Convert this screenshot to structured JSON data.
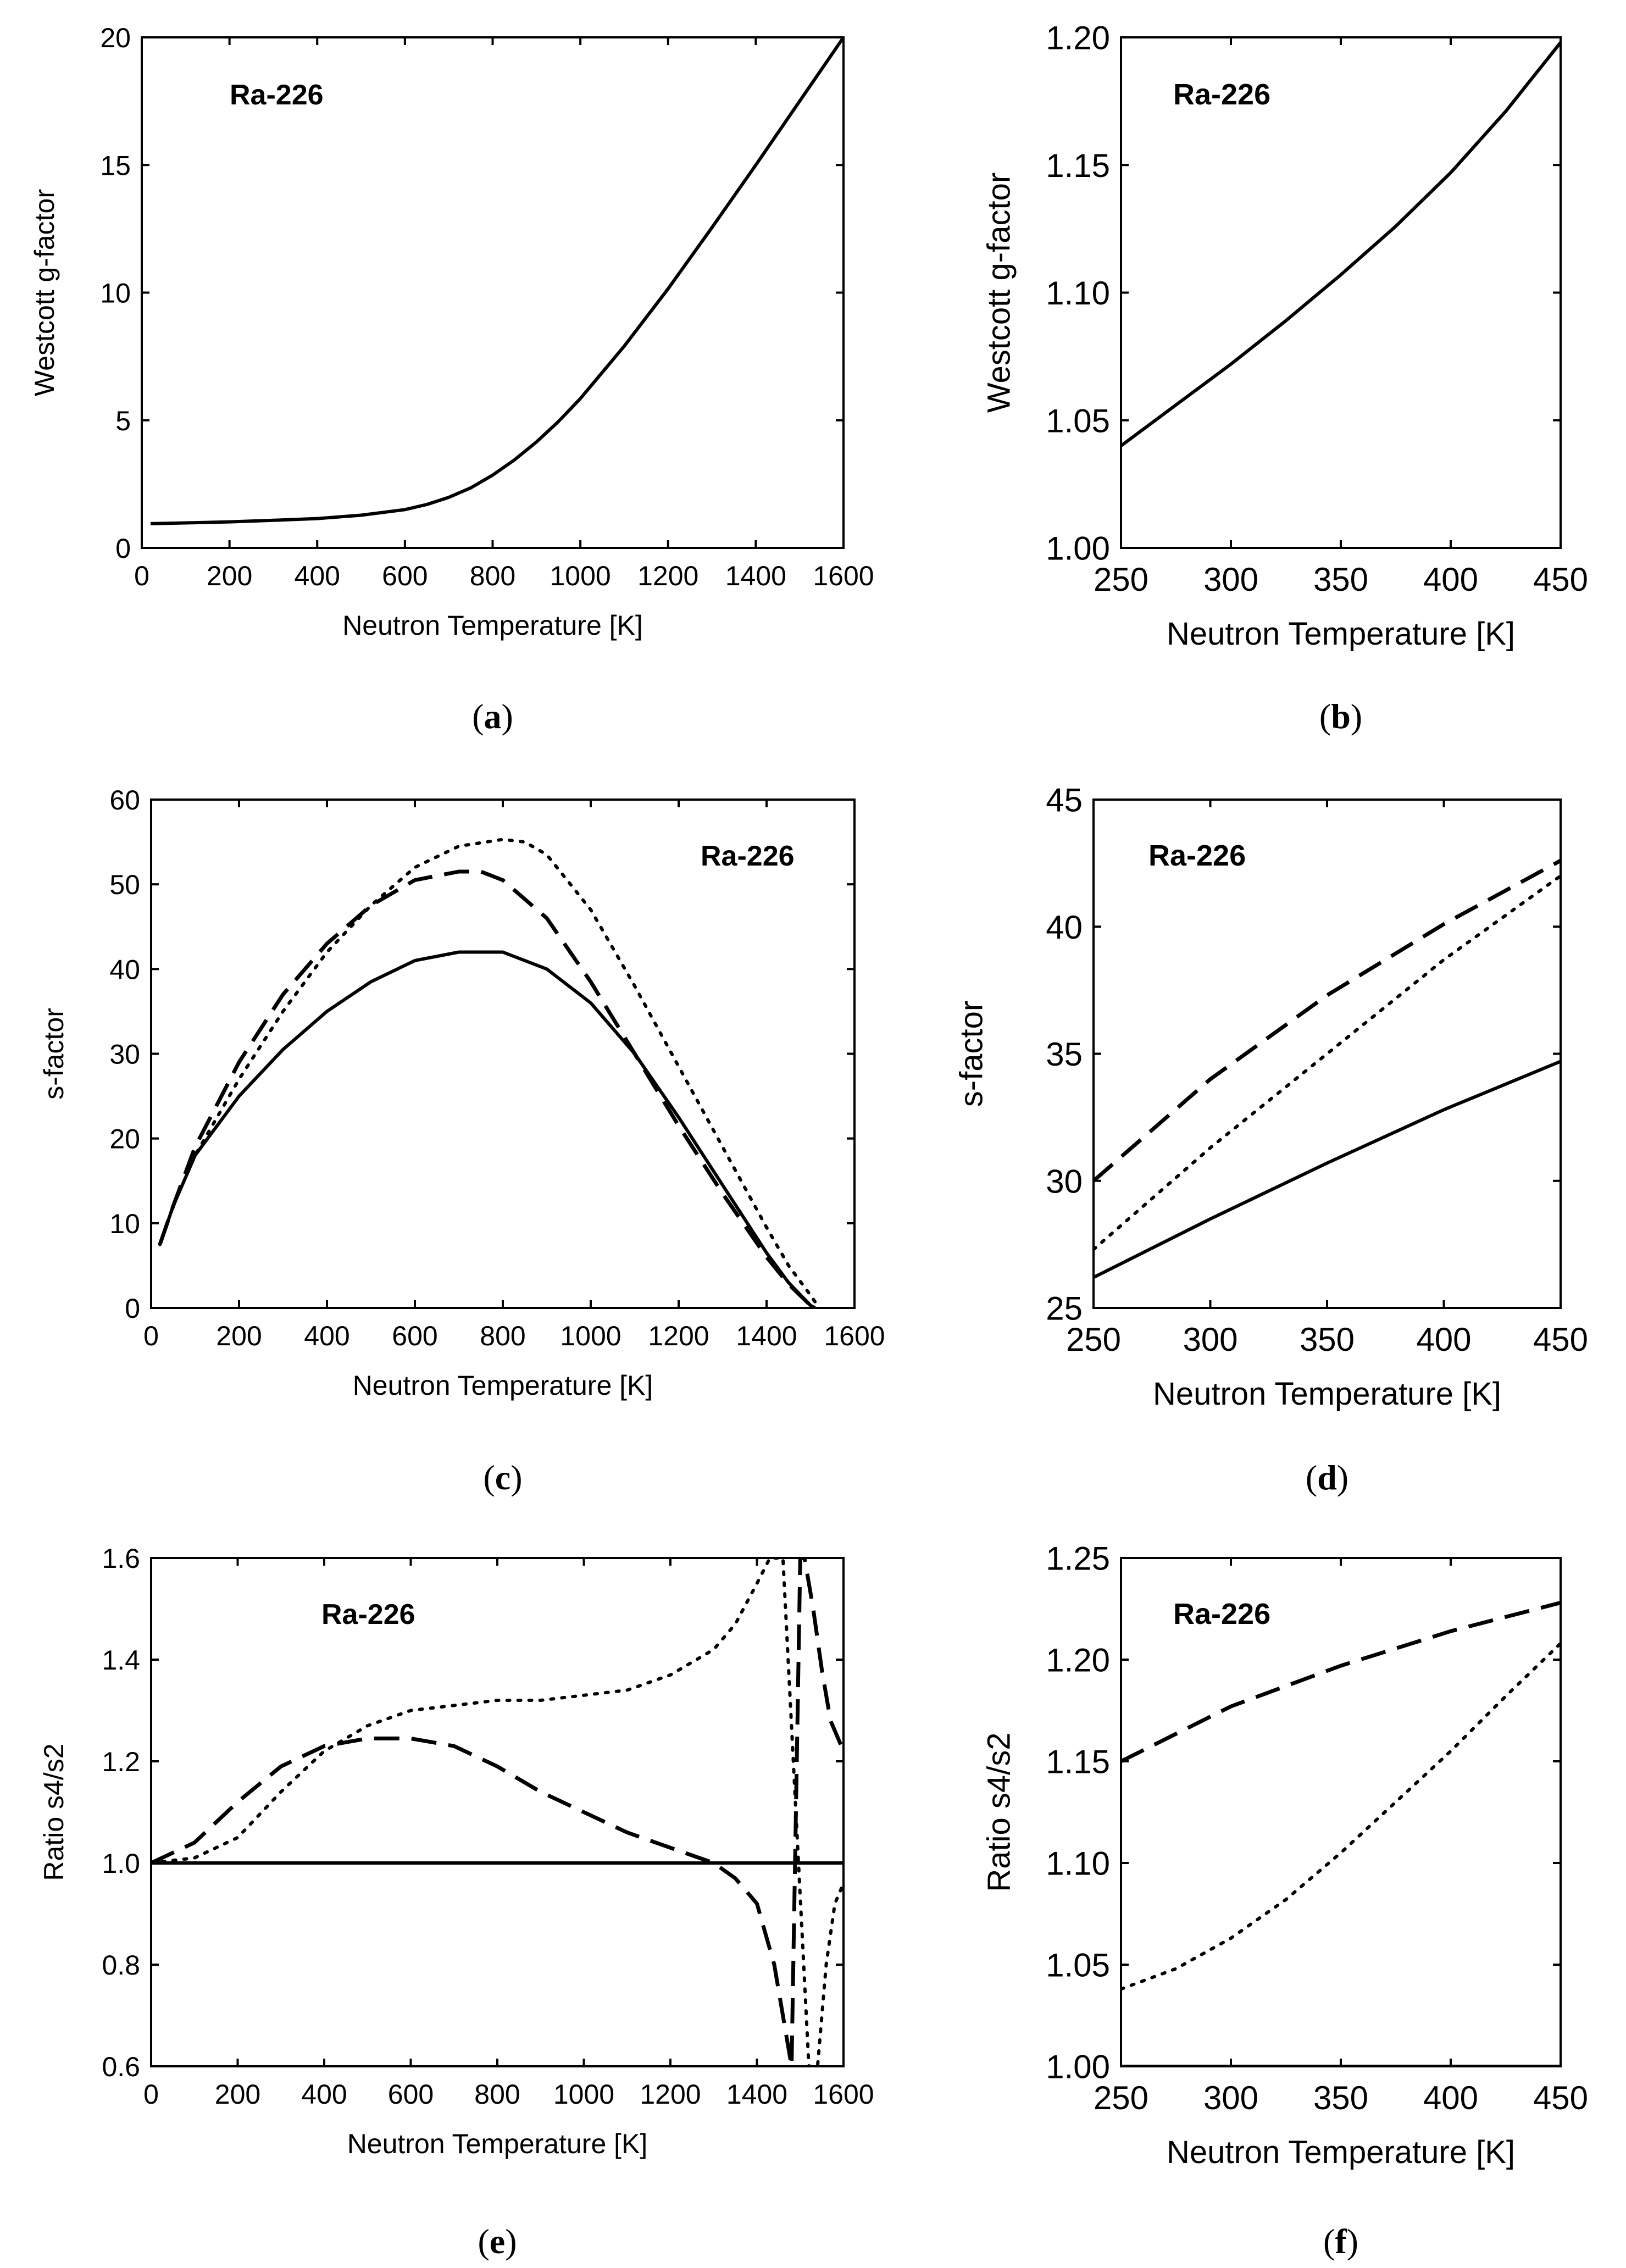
{
  "figure": {
    "panels": [
      "a",
      "b",
      "c",
      "d",
      "e",
      "f"
    ]
  },
  "chart_data": [
    {
      "id": "a",
      "type": "line",
      "caption": "a",
      "inset_label": "Ra-226",
      "xlabel": "Neutron Temperature [K]",
      "ylabel": "Westcott g-factor",
      "xlim": [
        0,
        1600
      ],
      "ylim": [
        0,
        20
      ],
      "xticks": [
        0,
        200,
        400,
        600,
        800,
        1000,
        1200,
        1400,
        1600
      ],
      "yticks": [
        0,
        5,
        10,
        15,
        20
      ],
      "xtick_labels": [
        "0",
        "200",
        "400",
        "600",
        "800",
        "1000",
        "1200",
        "1400",
        "1600"
      ],
      "ytick_labels": [
        "0",
        "5",
        "10",
        "15",
        "20"
      ],
      "series": [
        {
          "name": "g-factor",
          "style": "solid",
          "x": [
            20,
            100,
            200,
            300,
            400,
            500,
            600,
            650,
            700,
            750,
            800,
            850,
            900,
            950,
            1000,
            1100,
            1200,
            1300,
            1400,
            1500,
            1600
          ],
          "y": [
            0.95,
            0.98,
            1.02,
            1.08,
            1.15,
            1.28,
            1.5,
            1.7,
            1.98,
            2.35,
            2.85,
            3.45,
            4.15,
            4.95,
            5.85,
            7.9,
            10.15,
            12.55,
            15.0,
            17.5,
            20.0
          ]
        }
      ]
    },
    {
      "id": "b",
      "type": "line",
      "caption": "b",
      "inset_label": "Ra-226",
      "xlabel": "Neutron Temperature [K]",
      "ylabel": "Westcott g-factor",
      "xlim": [
        250,
        450
      ],
      "ylim": [
        1.0,
        1.2
      ],
      "xticks": [
        250,
        300,
        350,
        400,
        450
      ],
      "yticks": [
        1.0,
        1.05,
        1.1,
        1.15,
        1.2
      ],
      "xtick_labels": [
        "250",
        "300",
        "350",
        "400",
        "450"
      ],
      "ytick_labels": [
        "1.00",
        "1.05",
        "1.10",
        "1.15",
        "1.20"
      ],
      "series": [
        {
          "name": "g-factor",
          "style": "solid",
          "x": [
            250,
            275,
            300,
            325,
            350,
            375,
            400,
            425,
            450
          ],
          "y": [
            1.04,
            1.056,
            1.072,
            1.089,
            1.107,
            1.126,
            1.147,
            1.171,
            1.198
          ]
        }
      ]
    },
    {
      "id": "c",
      "type": "line",
      "caption": "c",
      "inset_label": "Ra-226",
      "xlabel": "Neutron Temperature [K]",
      "ylabel": "s-factor",
      "xlim": [
        0,
        1600
      ],
      "ylim": [
        0,
        60
      ],
      "xticks": [
        0,
        200,
        400,
        600,
        800,
        1000,
        1200,
        1400,
        1600
      ],
      "yticks": [
        0,
        10,
        20,
        30,
        40,
        50,
        60
      ],
      "xtick_labels": [
        "0",
        "200",
        "400",
        "600",
        "800",
        "1000",
        "1200",
        "1400",
        "1600"
      ],
      "ytick_labels": [
        "0",
        "10",
        "20",
        "30",
        "40",
        "50",
        "60"
      ],
      "series": [
        {
          "name": "solid",
          "style": "solid",
          "x": [
            20,
            50,
            100,
            200,
            300,
            400,
            500,
            600,
            700,
            800,
            900,
            1000,
            1100,
            1200,
            1300,
            1400,
            1450,
            1500,
            1510
          ],
          "y": [
            7.5,
            12,
            18,
            25,
            30.5,
            35,
            38.5,
            41,
            42,
            42,
            40,
            36,
            30,
            22.5,
            14.5,
            6.5,
            3,
            0.3,
            0
          ]
        },
        {
          "name": "dashed",
          "style": "dashed",
          "x": [
            20,
            50,
            100,
            200,
            300,
            400,
            500,
            600,
            700,
            750,
            800,
            900,
            1000,
            1100,
            1200,
            1300,
            1400,
            1450,
            1500,
            1510
          ],
          "y": [
            7.5,
            12,
            19,
            29,
            37,
            43,
            47.5,
            50.5,
            51.5,
            51.5,
            50.5,
            46,
            38.5,
            30,
            21.5,
            13.5,
            6,
            2.8,
            0.3,
            0
          ]
        },
        {
          "name": "dotted",
          "style": "dotted",
          "x": [
            20,
            50,
            100,
            200,
            300,
            400,
            500,
            600,
            700,
            800,
            850,
            900,
            1000,
            1100,
            1200,
            1300,
            1400,
            1450,
            1500,
            1520
          ],
          "y": [
            7.5,
            12,
            18,
            27,
            35,
            42,
            47.5,
            52,
            54.5,
            55.3,
            55,
            53.5,
            47,
            38,
            28.5,
            19,
            9.5,
            5,
            1.5,
            0
          ]
        }
      ]
    },
    {
      "id": "d",
      "type": "line",
      "caption": "d",
      "inset_label": "Ra-226",
      "xlabel": "Neutron Temperature [K]",
      "ylabel": "s-factor",
      "xlim": [
        250,
        450
      ],
      "ylim": [
        25,
        45
      ],
      "xticks": [
        250,
        300,
        350,
        400,
        450
      ],
      "yticks": [
        25,
        30,
        35,
        40,
        45
      ],
      "xtick_labels": [
        "250",
        "300",
        "350",
        "400",
        "450"
      ],
      "ytick_labels": [
        "25",
        "30",
        "35",
        "40",
        "45"
      ],
      "series": [
        {
          "name": "solid",
          "style": "solid",
          "x": [
            250,
            300,
            350,
            400,
            450
          ],
          "y": [
            26.2,
            28.5,
            30.7,
            32.8,
            34.7
          ]
        },
        {
          "name": "dashed",
          "style": "dashed",
          "x": [
            250,
            300,
            350,
            400,
            450
          ],
          "y": [
            30.0,
            34.0,
            37.3,
            40.1,
            42.6
          ]
        },
        {
          "name": "dotted",
          "style": "dotted",
          "x": [
            250,
            300,
            350,
            400,
            450
          ],
          "y": [
            27.3,
            31.3,
            35.0,
            38.7,
            42.0
          ]
        }
      ]
    },
    {
      "id": "e",
      "type": "line",
      "caption": "e",
      "inset_label": "Ra-226",
      "xlabel": "Neutron Temperature [K]",
      "ylabel": "Ratio s4/s2",
      "xlim": [
        0,
        1600
      ],
      "ylim": [
        0.6,
        1.6
      ],
      "xticks": [
        0,
        200,
        400,
        600,
        800,
        1000,
        1200,
        1400,
        1600
      ],
      "yticks": [
        0.6,
        0.8,
        1.0,
        1.2,
        1.4,
        1.6
      ],
      "xtick_labels": [
        "0",
        "200",
        "400",
        "600",
        "800",
        "1000",
        "1200",
        "1400",
        "1600"
      ],
      "ytick_labels": [
        "0.6",
        "0.8",
        "1.0",
        "1.2",
        "1.4",
        "1.6"
      ],
      "series": [
        {
          "name": "solid",
          "style": "solid",
          "x": [
            0,
            1600
          ],
          "y": [
            1.0,
            1.0
          ]
        },
        {
          "name": "dashed",
          "style": "dashed",
          "x": [
            0,
            100,
            200,
            300,
            400,
            500,
            600,
            700,
            800,
            900,
            1000,
            1100,
            1200,
            1300,
            1350,
            1400,
            1440,
            1470,
            1480,
            1500,
            1510,
            1530,
            1550,
            1570,
            1600
          ],
          "y": [
            1.0,
            1.04,
            1.12,
            1.19,
            1.23,
            1.245,
            1.245,
            1.23,
            1.19,
            1.14,
            1.1,
            1.06,
            1.03,
            1.0,
            0.97,
            0.92,
            0.8,
            0.65,
            0.6,
            1.6,
            1.6,
            1.5,
            1.38,
            1.28,
            1.22
          ]
        },
        {
          "name": "dotted",
          "style": "dotted",
          "x": [
            0,
            100,
            200,
            300,
            400,
            500,
            600,
            700,
            800,
            900,
            1000,
            1100,
            1200,
            1300,
            1350,
            1400,
            1430,
            1460,
            1520,
            1540,
            1560,
            1580,
            1600
          ],
          "y": [
            1.0,
            1.01,
            1.05,
            1.14,
            1.22,
            1.27,
            1.3,
            1.31,
            1.32,
            1.32,
            1.33,
            1.34,
            1.37,
            1.42,
            1.47,
            1.55,
            1.6,
            1.6,
            0.6,
            0.6,
            0.8,
            0.92,
            0.96
          ]
        }
      ]
    },
    {
      "id": "f",
      "type": "line",
      "caption": "f",
      "inset_label": "Ra-226",
      "xlabel": "Neutron Temperature [K]",
      "ylabel": "Ratio s4/s2",
      "xlim": [
        250,
        450
      ],
      "ylim": [
        1.0,
        1.25
      ],
      "xticks": [
        250,
        300,
        350,
        400,
        450
      ],
      "yticks": [
        1.0,
        1.05,
        1.1,
        1.15,
        1.2,
        1.25
      ],
      "xtick_labels": [
        "250",
        "300",
        "350",
        "400",
        "450"
      ],
      "ytick_labels": [
        "1.00",
        "1.05",
        "1.10",
        "1.15",
        "1.20",
        "1.25"
      ],
      "series": [
        {
          "name": "solid",
          "style": "solid",
          "x": [
            250,
            450
          ],
          "y": [
            1.0,
            1.0
          ]
        },
        {
          "name": "dashed",
          "style": "dashed",
          "x": [
            250,
            300,
            350,
            400,
            450
          ],
          "y": [
            1.15,
            1.177,
            1.197,
            1.214,
            1.228
          ]
        },
        {
          "name": "dotted",
          "style": "dotted",
          "x": [
            250,
            275,
            300,
            325,
            350,
            375,
            400,
            425,
            450
          ],
          "y": [
            1.038,
            1.048,
            1.063,
            1.082,
            1.105,
            1.13,
            1.155,
            1.182,
            1.208
          ]
        }
      ]
    }
  ]
}
